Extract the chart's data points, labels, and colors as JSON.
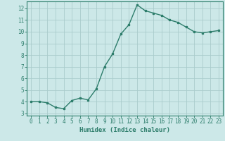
{
  "x": [
    0,
    1,
    2,
    3,
    4,
    5,
    6,
    7,
    8,
    9,
    10,
    11,
    12,
    13,
    14,
    15,
    16,
    17,
    18,
    19,
    20,
    21,
    22,
    23
  ],
  "y": [
    4.0,
    4.0,
    3.9,
    3.5,
    3.4,
    4.1,
    4.3,
    4.15,
    5.1,
    7.0,
    8.1,
    9.8,
    10.6,
    12.3,
    11.8,
    11.6,
    11.4,
    11.0,
    10.8,
    10.4,
    10.0,
    9.9,
    10.0,
    10.1
  ],
  "line_color": "#2d7d6b",
  "marker": "s",
  "marker_size": 2.0,
  "bg_color": "#cce8e8",
  "grid_color": "#aacccc",
  "xlabel": "Humidex (Indice chaleur)",
  "xlim": [
    -0.5,
    23.5
  ],
  "ylim": [
    2.8,
    12.6
  ],
  "yticks": [
    3,
    4,
    5,
    6,
    7,
    8,
    9,
    10,
    11,
    12
  ],
  "xticks": [
    0,
    1,
    2,
    3,
    4,
    5,
    6,
    7,
    8,
    9,
    10,
    11,
    12,
    13,
    14,
    15,
    16,
    17,
    18,
    19,
    20,
    21,
    22,
    23
  ],
  "tick_color": "#2d7d6b",
  "label_fontsize": 6.5,
  "tick_fontsize": 5.5,
  "linewidth": 1.0,
  "axis_color": "#2d7d6b"
}
